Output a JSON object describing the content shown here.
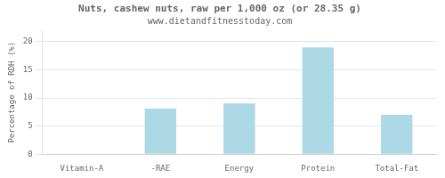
{
  "chart_data": {
    "type": "bar",
    "title": "Nuts, cashew nuts, raw per 1,000 oz (or 28.35 g)",
    "subtitle": "www.dietandfitnesstoday.com",
    "categories": [
      "Vitamin-A",
      "-RAE",
      "Energy",
      "Protein",
      "Total-Fat"
    ],
    "values": [
      0,
      8.1,
      9.0,
      19.0,
      7.0
    ],
    "color": "#add8e6",
    "ylabel": "Percentage of RDH (%)",
    "ylim": [
      0,
      22
    ],
    "yticks": [
      0,
      5,
      10,
      15,
      20
    ],
    "grid": true
  }
}
